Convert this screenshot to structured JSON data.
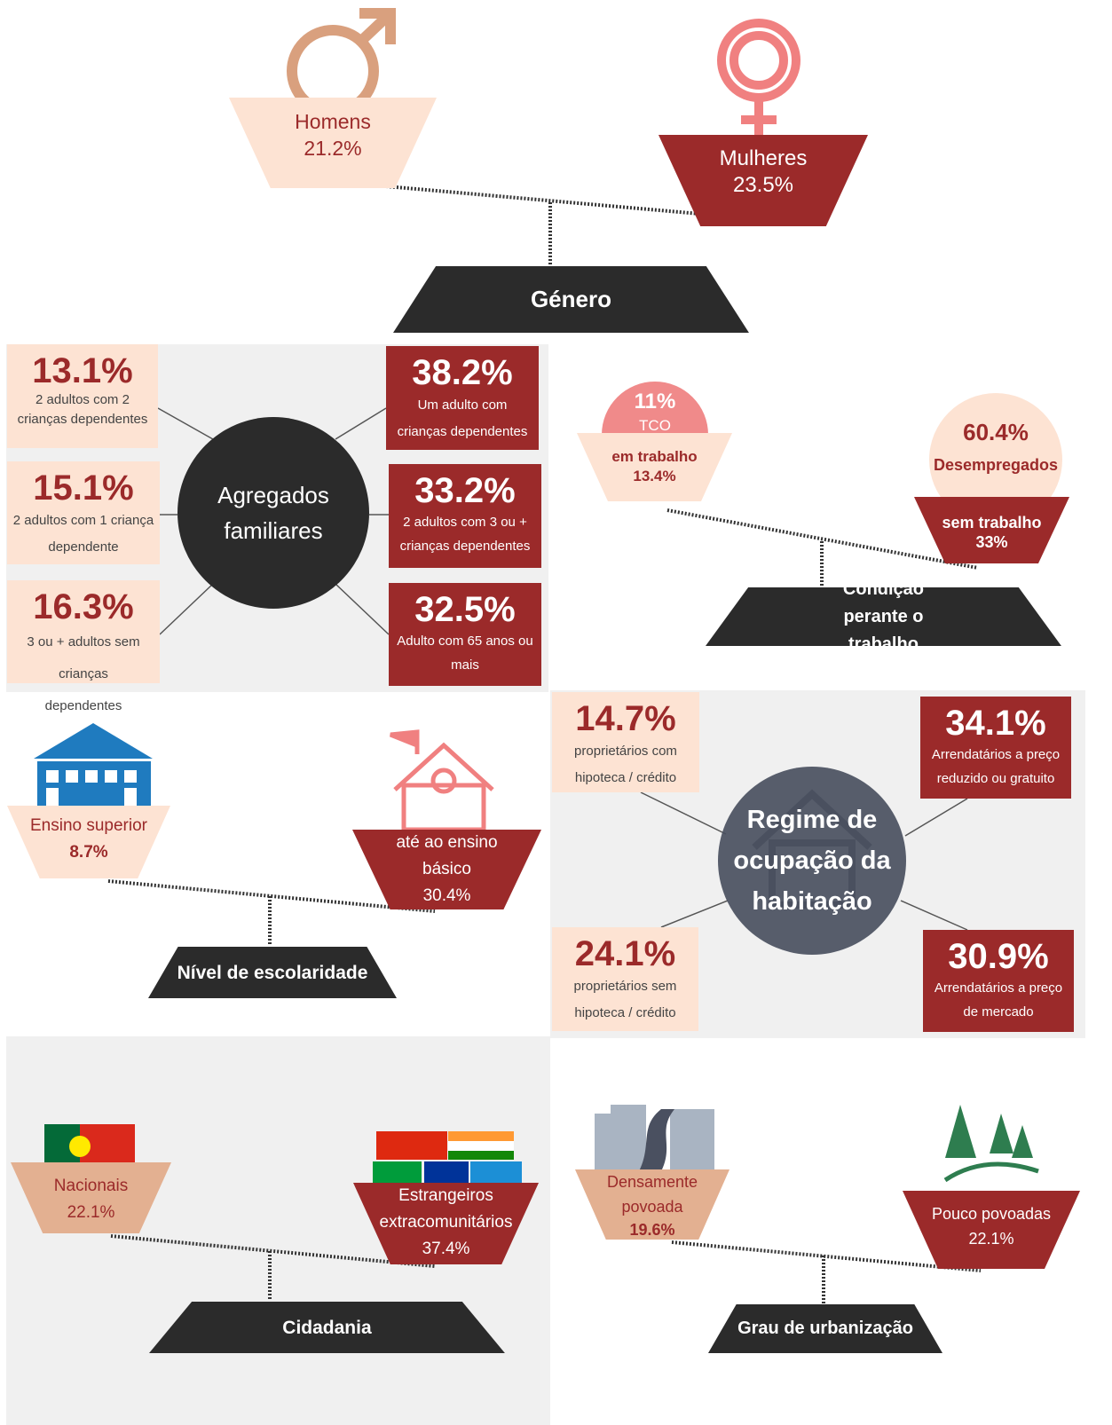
{
  "genero": {
    "title": "Género",
    "left": {
      "label": "Homens",
      "value": "21.2%"
    },
    "right": {
      "label": "Mulheres",
      "value": "23.5%"
    }
  },
  "agregados": {
    "title": "Agregados familiares",
    "items": [
      {
        "value": "13.1%",
        "label": "2 adultos com 2 crianças dependentes"
      },
      {
        "value": "15.1%",
        "label": "2 adultos com 1 criança dependente"
      },
      {
        "value": "16.3%",
        "label": "3 ou + adultos sem crianças dependentes"
      },
      {
        "value": "38.2%",
        "label": "Um adulto com crianças dependentes"
      },
      {
        "value": "33.2%",
        "label": "2 adultos com 3 ou + crianças dependentes"
      },
      {
        "value": "32.5%",
        "label": "Adulto com 65 anos ou mais"
      }
    ]
  },
  "condicao": {
    "title": "Condição perante o trabalho",
    "left": {
      "badge_value": "11%",
      "badge_label": "TCO",
      "label": "em trabalho",
      "value": "13.4%"
    },
    "right": {
      "badge_value": "60.4%",
      "badge_label": "Desempregados",
      "label": "sem trabalho",
      "value": "33%"
    }
  },
  "escolaridade": {
    "title": "Nível de escolaridade",
    "left": {
      "label": "Ensino superior",
      "value": "8.7%"
    },
    "right": {
      "label": "até ao ensino básico",
      "value": "30.4%"
    }
  },
  "habitacao": {
    "title": "Regime de ocupação da habitação",
    "items": [
      {
        "value": "14.7%",
        "label": "proprietários com hipoteca / crédito"
      },
      {
        "value": "34.1%",
        "label": "Arrendatários a preço reduzido ou gratuito"
      },
      {
        "value": "24.1%",
        "label": "proprietários sem hipoteca / crédito"
      },
      {
        "value": "30.9%",
        "label": "Arrendatários a preço de mercado"
      }
    ]
  },
  "cidadania": {
    "title": "Cidadania",
    "left": {
      "label": "Nacionais",
      "value": "22.1%"
    },
    "right": {
      "label": "Estrangeiros extracomunitários",
      "value": "37.4%"
    }
  },
  "urbanizacao": {
    "title": "Grau de urbanização",
    "left": {
      "label": "Densamente povoada",
      "value": "19.6%"
    },
    "right": {
      "label": "Pouco povoadas",
      "value": "22.1%"
    }
  }
}
